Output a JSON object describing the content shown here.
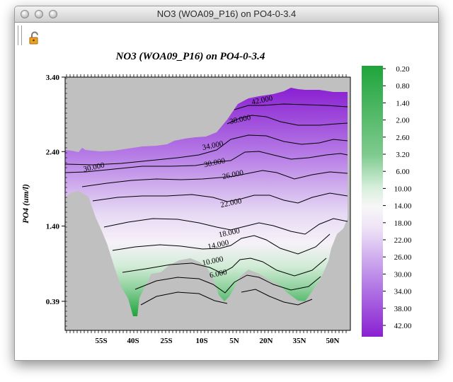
{
  "window": {
    "title": "NO3 (WOA09_P16) on PO4-0-3.4"
  },
  "toolbar": {
    "lock_icon": "lock-open-icon"
  },
  "colors": {
    "land": "#c0c0c0",
    "low": "#1ea43b",
    "mid": "#f4edf7",
    "high": "#8a20d2"
  },
  "chart_data": {
    "type": "heatmap",
    "title": "NO3 (WOA09_P16) on PO4-0-3.4",
    "xlabel": "",
    "ylabel": "PO4 (um/l)",
    "x_ticks": [
      "55S",
      "40S",
      "25S",
      "10S",
      "5N",
      "20N",
      "35N",
      "50N"
    ],
    "y_ticks": [
      "3.40",
      "2.40",
      "1.40",
      "0.39"
    ],
    "ylim": [
      0,
      3.4
    ],
    "colorbar_labels": [
      "0.20",
      "0.80",
      "1.40",
      "2.00",
      "2.60",
      "3.20",
      "6.00",
      "10.00",
      "14.00",
      "18.00",
      "22.00",
      "26.00",
      "30.00",
      "34.00",
      "38.00",
      "42.00"
    ],
    "contour_labels": [
      {
        "text": "42.000",
        "x_lat": 28,
        "y": 3.06
      },
      {
        "text": "38.000",
        "x_lat": 16,
        "y": 2.8
      },
      {
        "text": "34.000",
        "x_lat": 1,
        "y": 2.45
      },
      {
        "text": "30.000",
        "x_lat": -64,
        "y": 2.16
      },
      {
        "text": "30.000",
        "x_lat": 2,
        "y": 2.22
      },
      {
        "text": "26.000",
        "x_lat": 12,
        "y": 2.06
      },
      {
        "text": "22.000",
        "x_lat": 11,
        "y": 1.68
      },
      {
        "text": "18.000",
        "x_lat": 10,
        "y": 1.28
      },
      {
        "text": "14.000",
        "x_lat": 4,
        "y": 1.12
      },
      {
        "text": "10.000",
        "x_lat": 1,
        "y": 0.9
      },
      {
        "text": "6.000",
        "x_lat": 4,
        "y": 0.73
      }
    ]
  }
}
